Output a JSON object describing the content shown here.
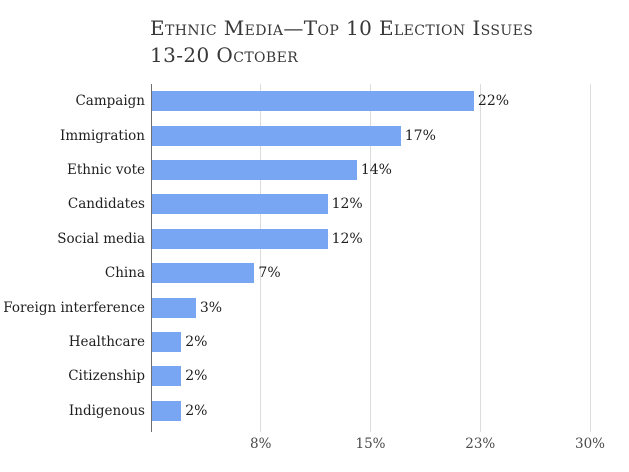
{
  "title": {
    "line1": "Ethnic Media—Top 10 Election Issues",
    "line2": "13-20 October"
  },
  "chart_data": {
    "type": "bar",
    "orientation": "horizontal",
    "title": "Ethnic Media—Top 10 Election Issues 13-20 October",
    "categories": [
      "Campaign",
      "Immigration",
      "Ethnic vote",
      "Candidates",
      "Social media",
      "China",
      "Foreign interference",
      "Healthcare",
      "Citizenship",
      "Indigenous"
    ],
    "values": [
      22,
      17,
      14,
      12,
      12,
      7,
      3,
      2,
      2,
      2
    ],
    "value_labels": [
      "22%",
      "17%",
      "14%",
      "12%",
      "12%",
      "7%",
      "3%",
      "2%",
      "2%",
      "2%"
    ],
    "xlabel": "",
    "ylabel": "",
    "xlim": [
      0,
      30
    ],
    "x_ticks": [
      {
        "value": 7.5,
        "label": "8%"
      },
      {
        "value": 15,
        "label": "15%"
      },
      {
        "value": 22.5,
        "label": "23%"
      },
      {
        "value": 30,
        "label": "30%"
      }
    ],
    "grid": true,
    "legend": "none",
    "colors": {
      "bar": "#78a6f2",
      "gridline": "#dcdcdc",
      "axis": "#6e6e6e",
      "title_text": "#383838",
      "label_text": "#1f1f1f",
      "tick_text": "#4a4a4a",
      "background": "#ffffff"
    }
  }
}
